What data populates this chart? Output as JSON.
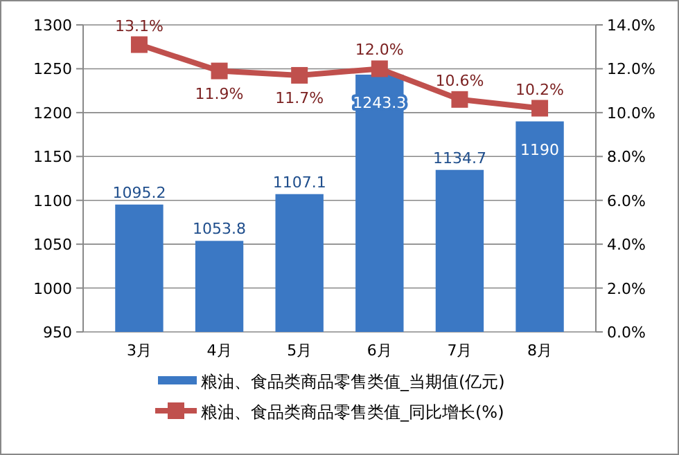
{
  "chart_data": {
    "type": "bar",
    "categories": [
      "3月",
      "4月",
      "5月",
      "6月",
      "7月",
      "8月"
    ],
    "series": [
      {
        "name": "粮油、食品类商品零售类值_当期值(亿元)",
        "color": "#3b78c4",
        "values": [
          1095.2,
          1053.8,
          1107.1,
          1243.3,
          1134.7,
          1190
        ]
      },
      {
        "name": "粮油、食品类商品零售类值_同比增长(%)",
        "type": "line",
        "axis": "y2",
        "color": "#c0504d",
        "values": [
          13.1,
          11.9,
          11.7,
          12.0,
          10.6,
          10.2
        ],
        "value_labels": [
          "13.1%",
          "11.9%",
          "11.7%",
          "12.0%",
          "10.6%",
          "10.2%"
        ]
      }
    ],
    "ylim": [
      950,
      1300
    ],
    "yticks": [
      950,
      1000,
      1050,
      1100,
      1150,
      1200,
      1250,
      1300
    ],
    "y2lim": [
      0,
      14
    ],
    "y2ticks": [
      {
        "value": 0,
        "label": "0.0%"
      },
      {
        "value": 2,
        "label": "2.0%"
      },
      {
        "value": 4,
        "label": "4.0%"
      },
      {
        "value": 6,
        "label": "6.0%"
      },
      {
        "value": 8,
        "label": "8.0%"
      },
      {
        "value": 10,
        "label": "10.0%"
      },
      {
        "value": 12,
        "label": "12.0%"
      },
      {
        "value": 14,
        "label": "14.0%"
      }
    ],
    "grid": "y",
    "data_labels": true,
    "marker": "square",
    "legend": "bottom"
  }
}
